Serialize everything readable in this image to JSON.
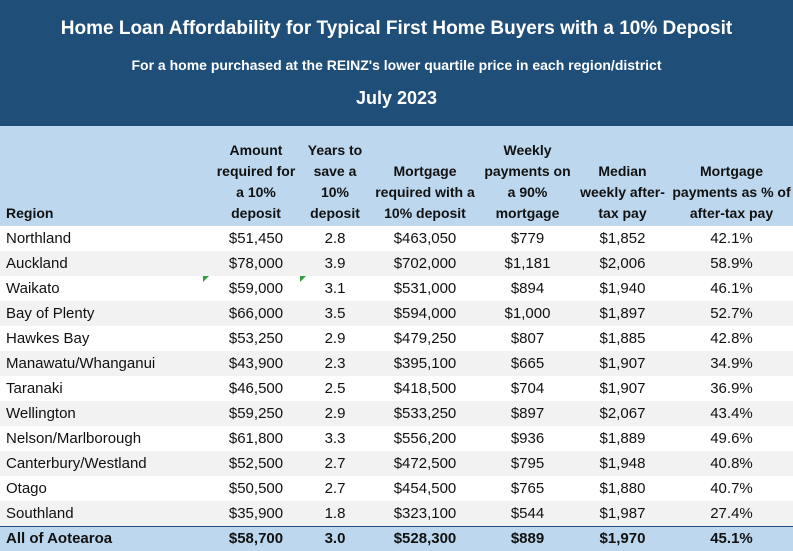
{
  "header": {
    "title": "Home Loan Affordability for Typical First Home Buyers with a 10% Deposit",
    "subtitle": "For a home purchased at the REINZ's lower quartile price in each region/district",
    "date": "July 2023"
  },
  "columns": [
    "Region",
    "Amount required for a 10% deposit",
    "Years to save a 10% deposit",
    "Mortgage required with a 10% deposit",
    "Weekly payments on a 90% mortgage",
    "Median weekly after-tax pay",
    "Mortgage payments as % of after-tax pay"
  ],
  "rows": [
    [
      "Northland",
      "$51,450",
      "2.8",
      "$463,050",
      "$779",
      "$1,852",
      "42.1%"
    ],
    [
      "Auckland",
      "$78,000",
      "3.9",
      "$702,000",
      "$1,181",
      "$2,006",
      "58.9%"
    ],
    [
      "Waikato",
      "$59,000",
      "3.1",
      "$531,000",
      "$894",
      "$1,940",
      "46.1%"
    ],
    [
      "Bay of Plenty",
      "$66,000",
      "3.5",
      "$594,000",
      "$1,000",
      "$1,897",
      "52.7%"
    ],
    [
      "Hawkes Bay",
      "$53,250",
      "2.9",
      "$479,250",
      "$807",
      "$1,885",
      "42.8%"
    ],
    [
      "Manawatu/Whanganui",
      "$43,900",
      "2.3",
      "$395,100",
      "$665",
      "$1,907",
      "34.9%"
    ],
    [
      "Taranaki",
      "$46,500",
      "2.5",
      "$418,500",
      "$704",
      "$1,907",
      "36.9%"
    ],
    [
      "Wellington",
      "$59,250",
      "2.9",
      "$533,250",
      "$897",
      "$2,067",
      "43.4%"
    ],
    [
      "Nelson/Marlborough",
      "$61,800",
      "3.3",
      "$556,200",
      "$936",
      "$1,889",
      "49.6%"
    ],
    [
      "Canterbury/Westland",
      "$52,500",
      "2.7",
      "$472,500",
      "$795",
      "$1,948",
      "40.8%"
    ],
    [
      "Otago",
      "$50,500",
      "2.7",
      "$454,500",
      "$765",
      "$1,880",
      "40.7%"
    ],
    [
      "Southland",
      "$35,900",
      "1.8",
      "$323,100",
      "$544",
      "$1,987",
      "27.4%"
    ]
  ],
  "total": [
    "All of Aotearoa",
    "$58,700",
    "3.0",
    "$528,300",
    "$889",
    "$1,970",
    "45.1%"
  ],
  "colors": {
    "header_bg": "#1f4e79",
    "column_header_bg": "#bdd7ee",
    "stripe": "#f2f2f2"
  }
}
